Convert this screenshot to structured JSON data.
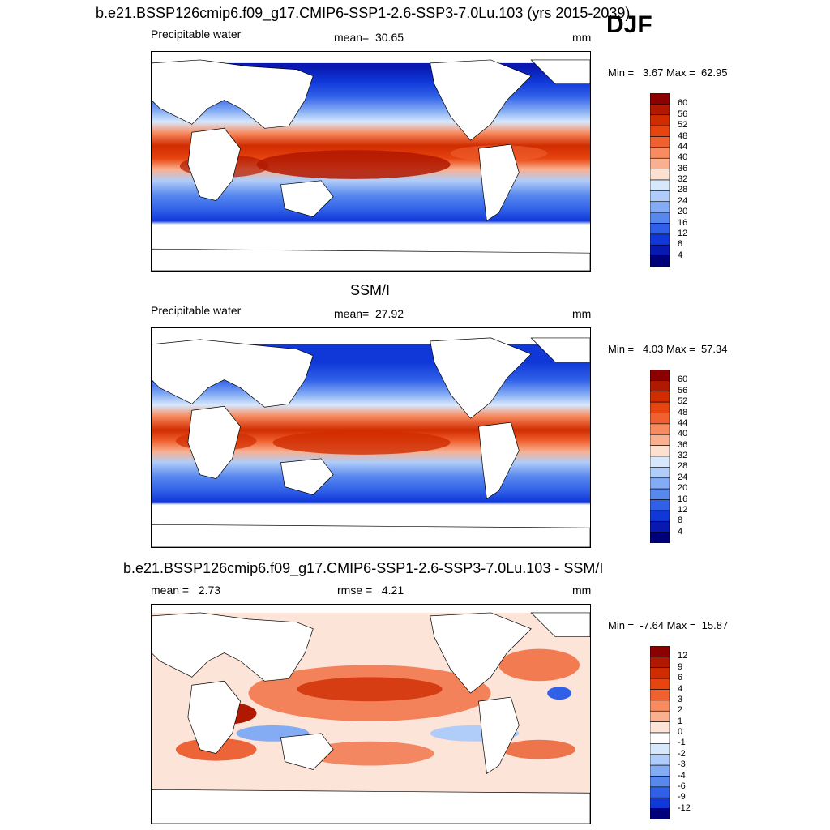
{
  "main_title": "b.e21.BSSP126cmip6.f09_g17.CMIP6-SSP1-2.6-SSP3-7.0Lu.103 (yrs 2015-2039)",
  "season": "DJF",
  "panels": [
    {
      "title": "b.e21.BSSP126cmip6.f09_g17.CMIP6-SSP1-2.6-SSP3-7.0Lu.103 (yrs 2015-2039)",
      "variable": "Precipitable water",
      "stat_label": "mean=",
      "stat_value": "30.65",
      "units": "mm",
      "min_label": "Min =",
      "min_value": "3.67",
      "max_label": "Max =",
      "max_value": "62.95",
      "levels": [
        "60",
        "56",
        "52",
        "48",
        "44",
        "40",
        "36",
        "32",
        "28",
        "24",
        "20",
        "16",
        "12",
        "8",
        "4"
      ],
      "colors": [
        "#8b0000",
        "#b01800",
        "#d02c00",
        "#e84410",
        "#f06030",
        "#f88c60",
        "#f8b090",
        "#fce0d0",
        "#d8e8fc",
        "#b0ccf8",
        "#84acf4",
        "#5888ee",
        "#3060e8",
        "#1038d8",
        "#0818b0",
        "#00007a"
      ]
    },
    {
      "title": "SSM/I",
      "variable": "Precipitable water",
      "stat_label": "mean=",
      "stat_value": "27.92",
      "units": "mm",
      "min_label": "Min =",
      "min_value": "4.03",
      "max_label": "Max =",
      "max_value": "57.34",
      "levels": [
        "60",
        "56",
        "52",
        "48",
        "44",
        "40",
        "36",
        "32",
        "28",
        "24",
        "20",
        "16",
        "12",
        "8",
        "4"
      ],
      "colors": [
        "#8b0000",
        "#b01800",
        "#d02c00",
        "#e84410",
        "#f06030",
        "#f88c60",
        "#f8b090",
        "#fce0d0",
        "#d8e8fc",
        "#b0ccf8",
        "#84acf4",
        "#5888ee",
        "#3060e8",
        "#1038d8",
        "#0818b0",
        "#00007a"
      ]
    },
    {
      "title": "b.e21.BSSP126cmip6.f09_g17.CMIP6-SSP1-2.6-SSP3-7.0Lu.103 - SSM/I",
      "variable": "mean =",
      "stat_label": "rmse =",
      "stat_value": "4.21",
      "mean_value": "2.73",
      "units": "mm",
      "min_label": "Min =",
      "min_value": "-7.64",
      "max_label": "Max =",
      "max_value": "15.87",
      "levels": [
        "12",
        "9",
        "6",
        "4",
        "3",
        "2",
        "1",
        "0",
        "-1",
        "-2",
        "-3",
        "-4",
        "-6",
        "-9",
        "-12"
      ],
      "colors": [
        "#8b0000",
        "#b01800",
        "#d02c00",
        "#e84410",
        "#f06030",
        "#f88c60",
        "#f8b090",
        "#fce4d8",
        "#ffffff",
        "#d8e8fc",
        "#b0ccf8",
        "#84acf4",
        "#5888ee",
        "#3060e8",
        "#1038d8",
        "#00007a"
      ]
    }
  ]
}
